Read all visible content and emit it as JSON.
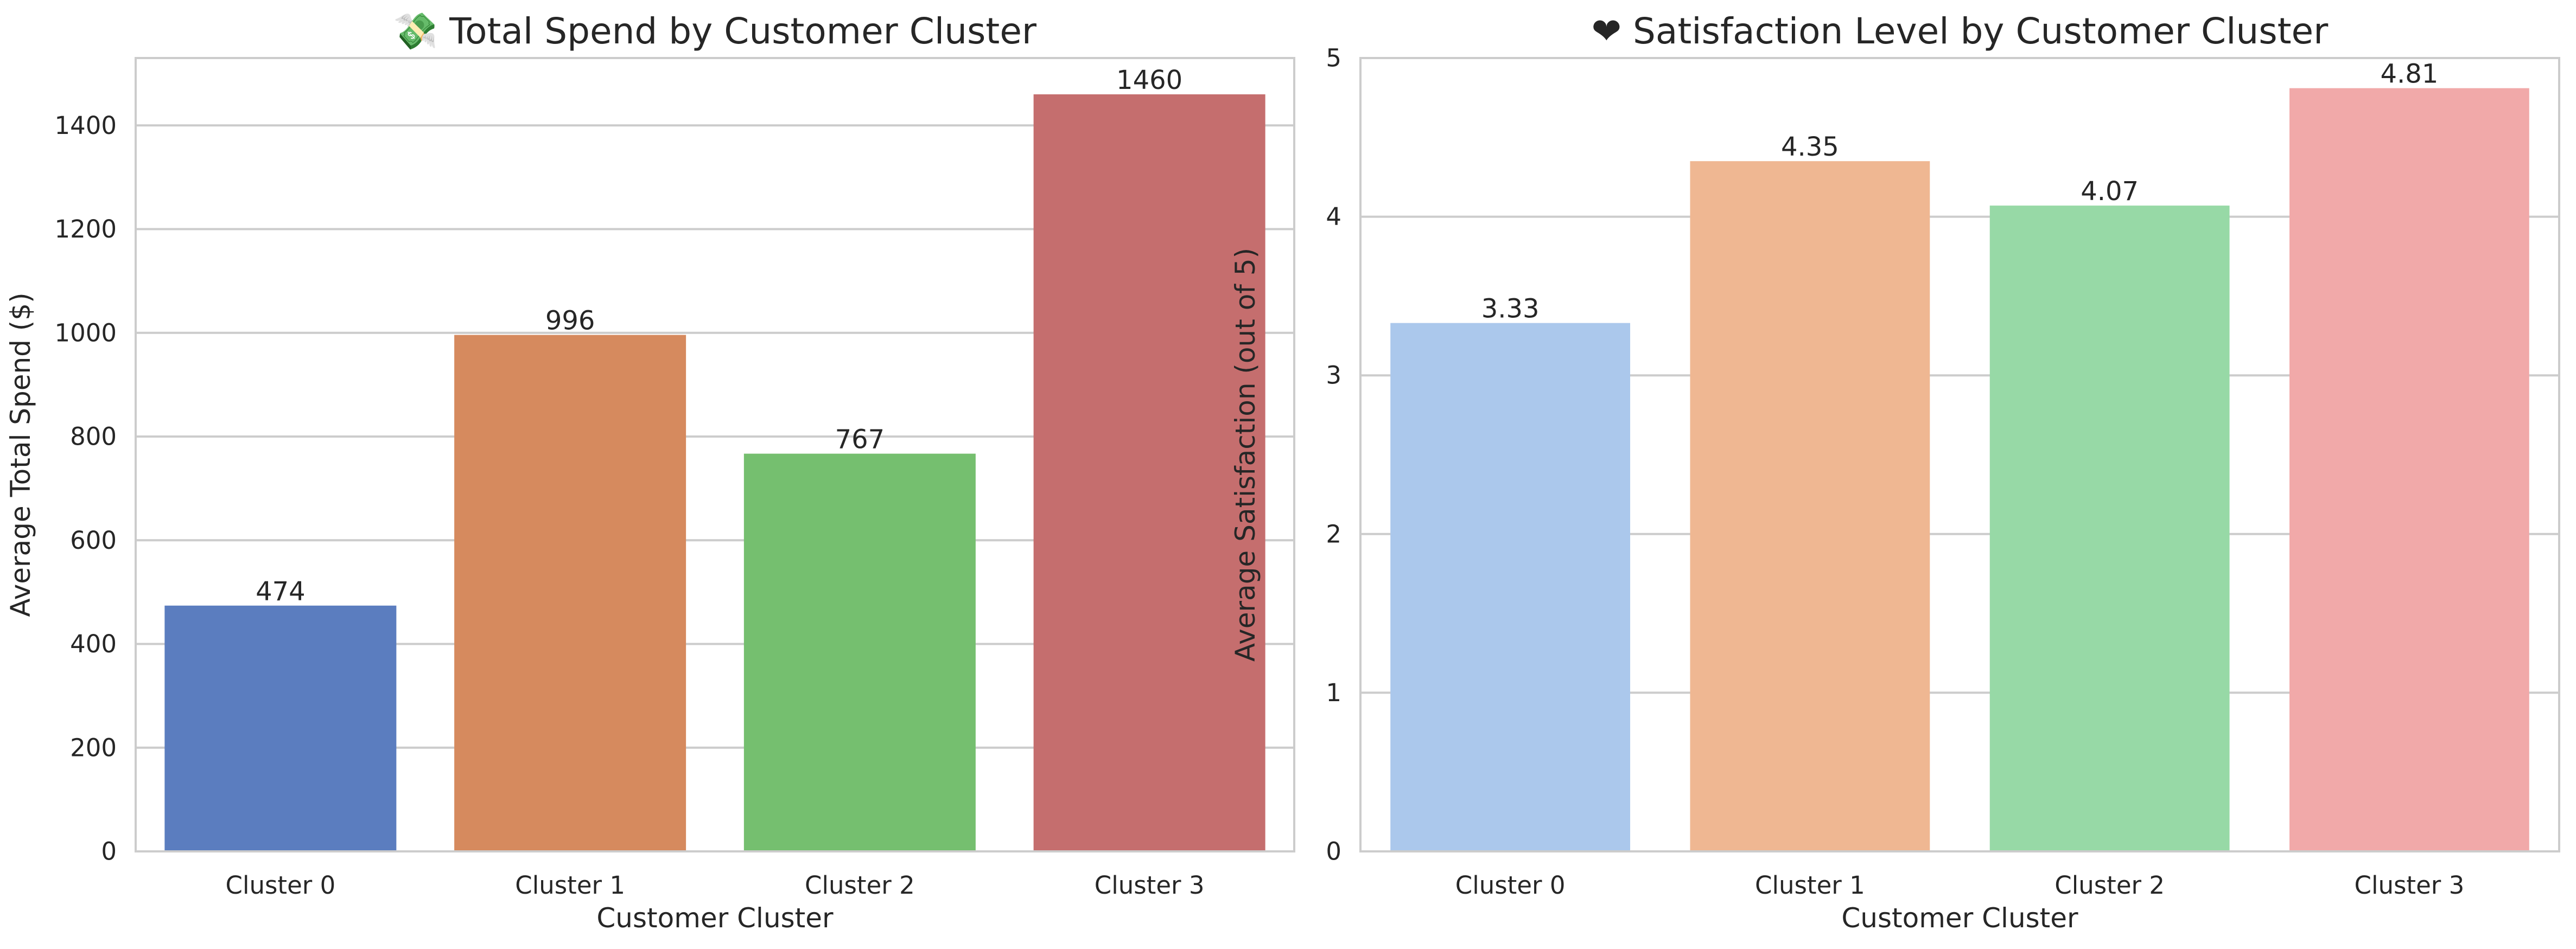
{
  "chart_data": [
    {
      "type": "bar",
      "title": "💸 Total Spend by Customer Cluster",
      "xlabel": "Customer Cluster",
      "ylabel": "Average Total Spend ($)",
      "categories": [
        "Cluster 0",
        "Cluster 1",
        "Cluster 2",
        "Cluster 3"
      ],
      "values": [
        474,
        996,
        767,
        1460
      ],
      "value_labels": [
        "474",
        "996",
        "767",
        "1460"
      ],
      "colors": [
        "#5b7dbf",
        "#d68a5e",
        "#75bf6f",
        "#c56e6e"
      ],
      "ylim": [
        0,
        1530
      ],
      "yticks": [
        0,
        200,
        400,
        600,
        800,
        1000,
        1200,
        1400
      ],
      "grid": "y"
    },
    {
      "type": "bar",
      "title": "❤ Satisfaction Level by Customer Cluster",
      "xlabel": "Customer Cluster",
      "ylabel": "Average Satisfaction (out of 5)",
      "categories": [
        "Cluster 0",
        "Cluster 1",
        "Cluster 2",
        "Cluster 3"
      ],
      "values": [
        3.33,
        4.35,
        4.07,
        4.81
      ],
      "value_labels": [
        "3.33",
        "4.35",
        "4.07",
        "4.81"
      ],
      "colors": [
        "#abc8ec",
        "#efb792",
        "#97d9a6",
        "#f1a9a9"
      ],
      "ylim": [
        0,
        5
      ],
      "yticks": [
        0,
        1,
        2,
        3,
        4,
        5
      ],
      "grid": "y"
    }
  ]
}
